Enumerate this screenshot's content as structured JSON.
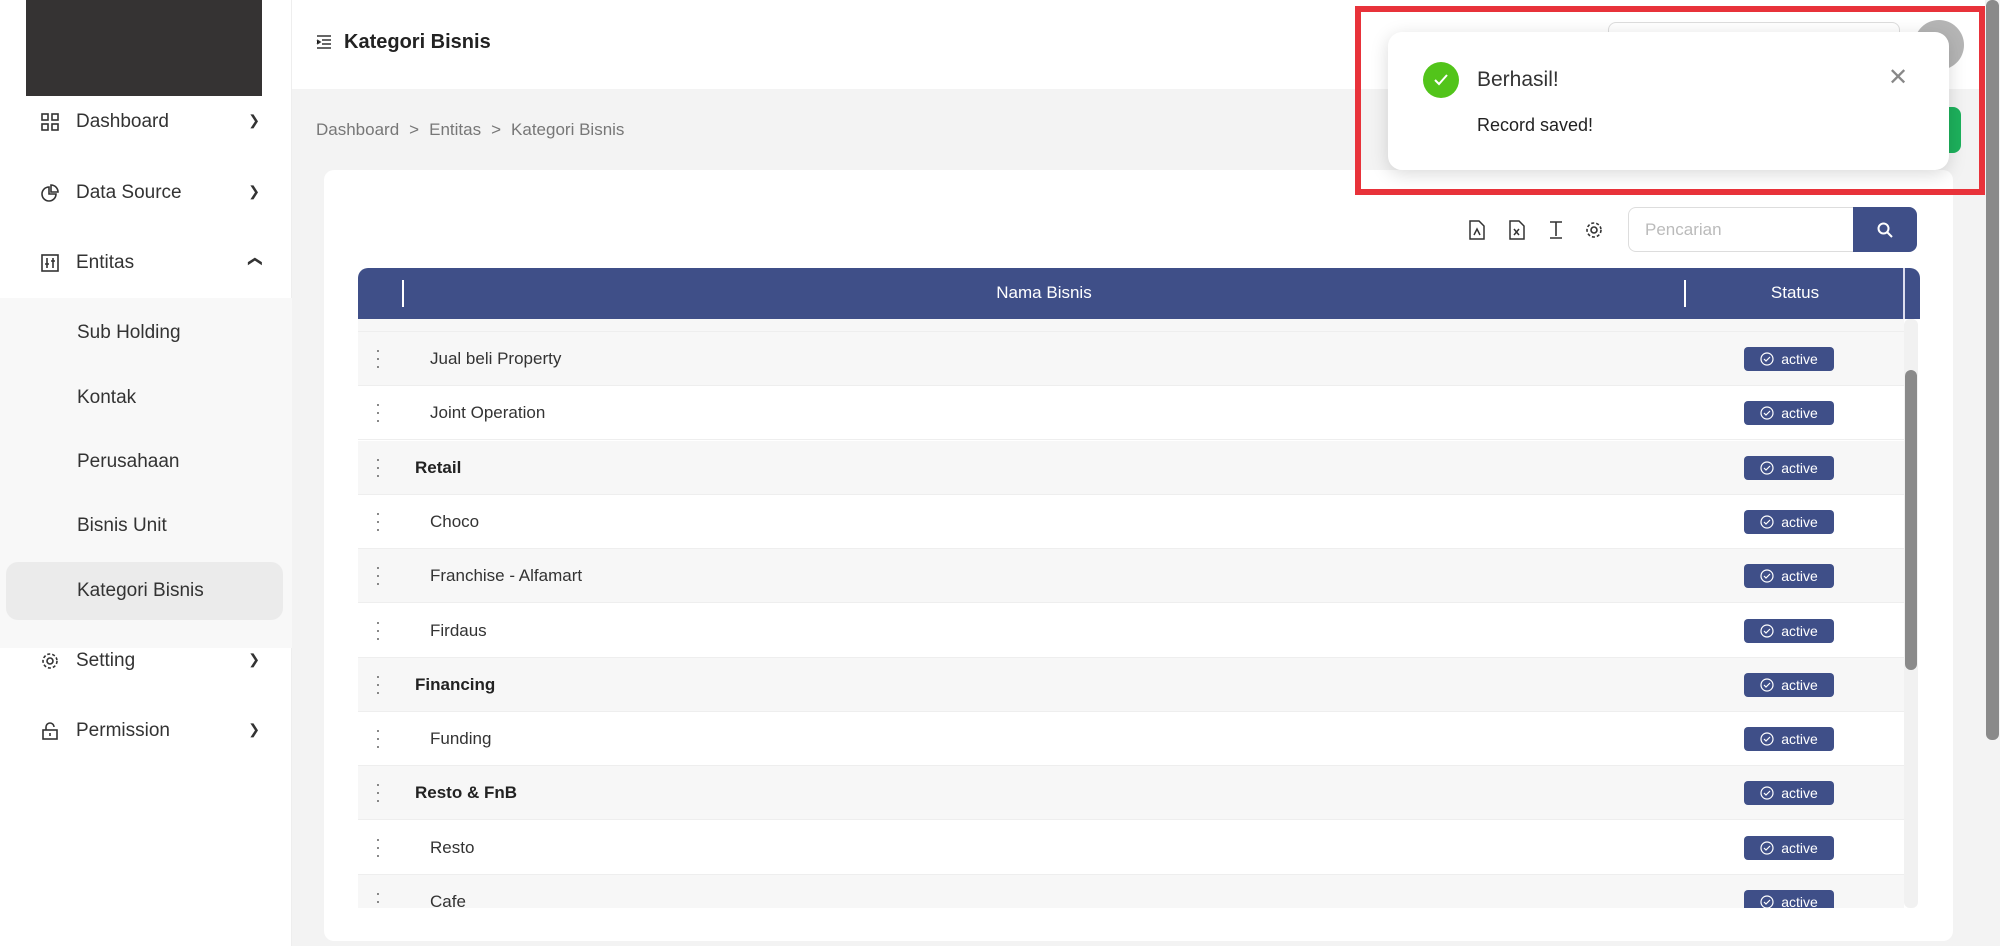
{
  "header": {
    "title": "Kategori Bisnis"
  },
  "breadcrumb": [
    "Dashboard",
    ">",
    "Entitas",
    ">",
    "Kategori Bisnis"
  ],
  "sidebar": {
    "items": [
      {
        "label": "Dashboard",
        "icon": "grid-icon",
        "expanded": false
      },
      {
        "label": "Data Source",
        "icon": "pie-chart-icon",
        "expanded": false
      },
      {
        "label": "Entitas",
        "icon": "sliders-icon",
        "expanded": true
      },
      {
        "label": "Setting",
        "icon": "gear-icon",
        "expanded": false
      },
      {
        "label": "Permission",
        "icon": "lock-icon",
        "expanded": false
      }
    ],
    "subitems": [
      "Sub Holding",
      "Kontak",
      "Perusahaan",
      "Bisnis Unit",
      "Kategori Bisnis"
    ],
    "active_subitem": "Kategori Bisnis"
  },
  "toolbar": {
    "search_placeholder": "Pencarian",
    "icons": [
      "pdf-icon",
      "excel-icon",
      "text-height-icon",
      "gear-icon"
    ]
  },
  "table": {
    "columns": [
      "Nama Bisnis",
      "Status"
    ],
    "rows": [
      {
        "name": "Jual beli Property",
        "level": "child",
        "status": "active"
      },
      {
        "name": "Joint Operation",
        "level": "child",
        "status": "active"
      },
      {
        "name": "Retail",
        "level": "parent",
        "status": "active"
      },
      {
        "name": "Choco",
        "level": "child",
        "status": "active"
      },
      {
        "name": "Franchise - Alfamart",
        "level": "child",
        "status": "active"
      },
      {
        "name": "Firdaus",
        "level": "child",
        "status": "active"
      },
      {
        "name": "Financing",
        "level": "parent",
        "status": "active"
      },
      {
        "name": "Funding",
        "level": "child",
        "status": "active"
      },
      {
        "name": "Resto & FnB",
        "level": "parent",
        "status": "active"
      },
      {
        "name": "Resto",
        "level": "child",
        "status": "active"
      },
      {
        "name": "Cafe",
        "level": "child",
        "status": "active"
      }
    ]
  },
  "toast": {
    "title": "Berhasil!",
    "message": "Record saved!",
    "type": "success"
  },
  "colors": {
    "primary": "#3f4f88",
    "success": "#52c41a",
    "add_button": "#1db15c",
    "highlight": "#e8323a"
  }
}
